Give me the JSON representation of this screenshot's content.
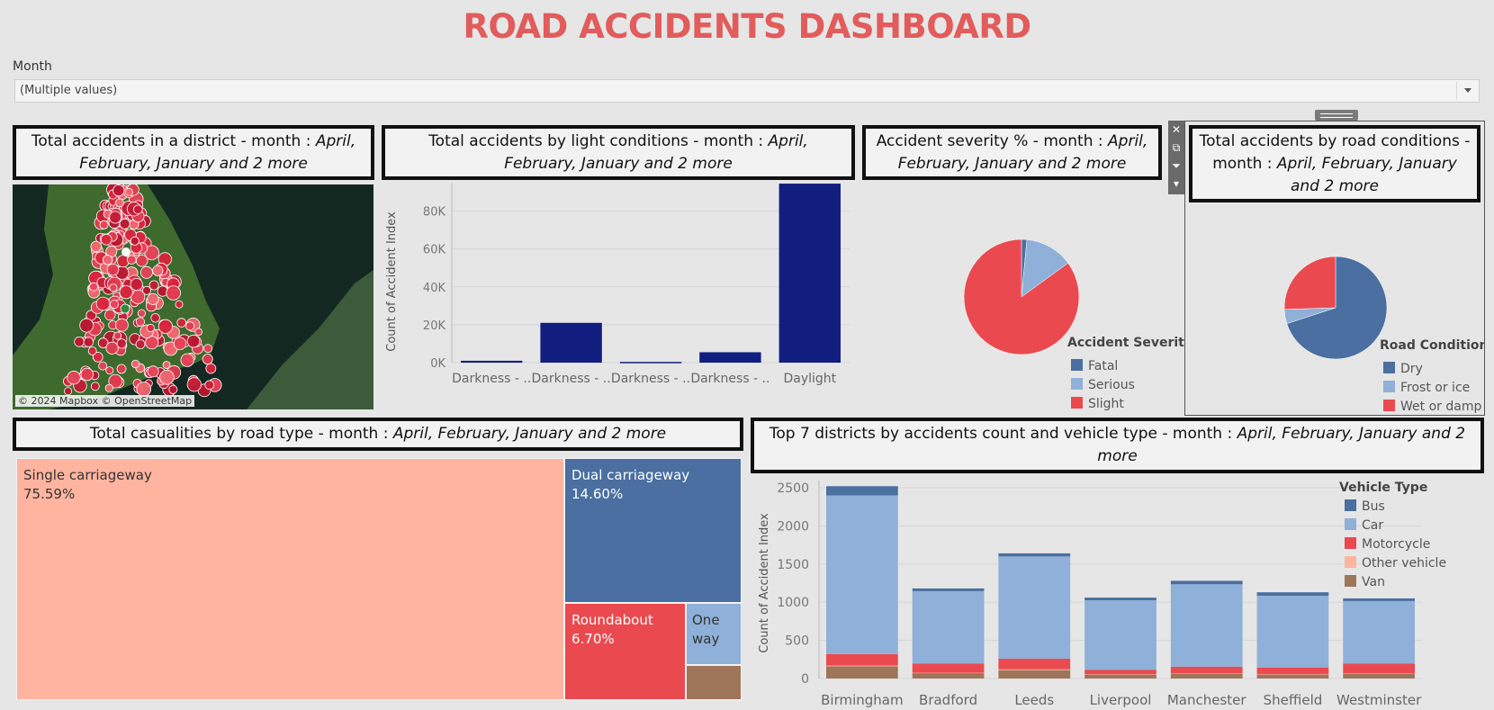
{
  "title": "ROAD ACCIDENTS DASHBOARD",
  "filter": {
    "label": "Month",
    "value": "(Multiple values)"
  },
  "colors": {
    "title": "#e25c5c",
    "navy": "#111e80",
    "blue": "#4a6fa0",
    "lightblue": "#8fb0d8",
    "red": "#ea4a4f",
    "salmon": "#ffb4a0",
    "brown": "#9e7559"
  },
  "map": {
    "title_prefix": "Total accidents in a district - month : ",
    "title_suffix": "April, February, January and 2 more",
    "credit": "© 2024 Mapbox © OpenStreetMap"
  },
  "toolbar_icons": [
    "close-icon",
    "popout-icon",
    "filter-icon",
    "dropdown-icon"
  ],
  "chart_data": [
    {
      "id": "light",
      "type": "bar",
      "title_prefix": "Total accidents by light conditions - month : ",
      "title_suffix": "April, February, January and 2 more",
      "ylabel": "Count of Accident Index",
      "categories": [
        "Darkness - ..",
        "Darkness - ..",
        "Darkness - ..",
        "Darkness - ..",
        "Daylight"
      ],
      "values": [
        1000,
        21000,
        400,
        5500,
        94500
      ],
      "ylim": [
        0,
        95000
      ],
      "yticks": [
        {
          "v": 0,
          "label": "0K"
        },
        {
          "v": 20000,
          "label": "20K"
        },
        {
          "v": 40000,
          "label": "40K"
        },
        {
          "v": 60000,
          "label": "60K"
        },
        {
          "v": 80000,
          "label": "80K"
        }
      ],
      "grid": true
    },
    {
      "id": "severity",
      "type": "pie",
      "title_prefix": "Accident severity % - month : ",
      "title_suffix": "April, February, January and 2 more",
      "legend_title": "Accident Severity",
      "legend_position": "bottom-right",
      "slices": [
        {
          "label": "Fatal",
          "value": 1.5,
          "color": "#4a6fa0"
        },
        {
          "label": "Serious",
          "value": 13.5,
          "color": "#8fb0d8"
        },
        {
          "label": "Slight",
          "value": 85,
          "color": "#ea4a4f"
        }
      ]
    },
    {
      "id": "road",
      "type": "pie",
      "title_prefix": "Total accidents by road conditions - month : ",
      "title_suffix": "April, February, January and 2 more",
      "legend_title": "Road Conditions",
      "legend_position": "bottom-right",
      "slices": [
        {
          "label": "Dry",
          "value": 70,
          "color": "#4a6fa0"
        },
        {
          "label": "Frost or ice",
          "value": 4.5,
          "color": "#8fb0d8"
        },
        {
          "label": "Wet or damp",
          "value": 25.5,
          "color": "#ea4a4f"
        }
      ]
    },
    {
      "id": "roadtype",
      "type": "treemap",
      "title_prefix": "Total casualities by road type - month : ",
      "title_suffix": "April, February, January and 2 more",
      "items": [
        {
          "label": "Single carriageway",
          "pct": "75.59%",
          "value": 75.59,
          "color": "#ffb4a0"
        },
        {
          "label": "Dual carriageway",
          "pct": "14.60%",
          "value": 14.6,
          "color": "#4a6fa0"
        },
        {
          "label": "Roundabout",
          "pct": "6.70%",
          "value": 6.7,
          "color": "#ea4a4f"
        },
        {
          "label": "One way",
          "pct": "",
          "value": 2.0,
          "color": "#8fb0d8"
        },
        {
          "label": "",
          "pct": "",
          "value": 1.11,
          "color": "#9e7559"
        }
      ]
    },
    {
      "id": "districts",
      "type": "bar",
      "stacked": true,
      "title_prefix": "Top 7 districts by accidents count and vehicle type - month : ",
      "title_suffix": "April, February, January and 2 more",
      "ylabel": "Count of Accident Index",
      "legend_title": "Vehicle Type",
      "legend_position": "top-right",
      "categories": [
        "Birmingham",
        "Bradford",
        "Leeds",
        "Liverpool",
        "Manchester",
        "Sheffield",
        "Westminster"
      ],
      "ylim": [
        0,
        2500
      ],
      "yticks": [
        0,
        500,
        1000,
        1500,
        2000,
        2500
      ],
      "series": [
        {
          "name": "Van",
          "color": "#9e7559",
          "values": [
            160,
            70,
            110,
            50,
            60,
            50,
            60
          ]
        },
        {
          "name": "Other vehicle",
          "color": "#ffb4a0",
          "values": [
            10,
            5,
            10,
            5,
            5,
            5,
            5
          ]
        },
        {
          "name": "Motorcycle",
          "color": "#ea4a4f",
          "values": [
            150,
            120,
            140,
            60,
            90,
            90,
            130
          ]
        },
        {
          "name": "Car",
          "color": "#8fb0d8",
          "values": [
            2080,
            950,
            1340,
            910,
            1080,
            940,
            820
          ]
        },
        {
          "name": "Bus",
          "color": "#4a6fa0",
          "values": [
            120,
            35,
            40,
            35,
            45,
            45,
            35
          ]
        }
      ],
      "legend_order": [
        "Bus",
        "Car",
        "Motorcycle",
        "Other vehicle",
        "Van"
      ],
      "grid": true
    }
  ]
}
